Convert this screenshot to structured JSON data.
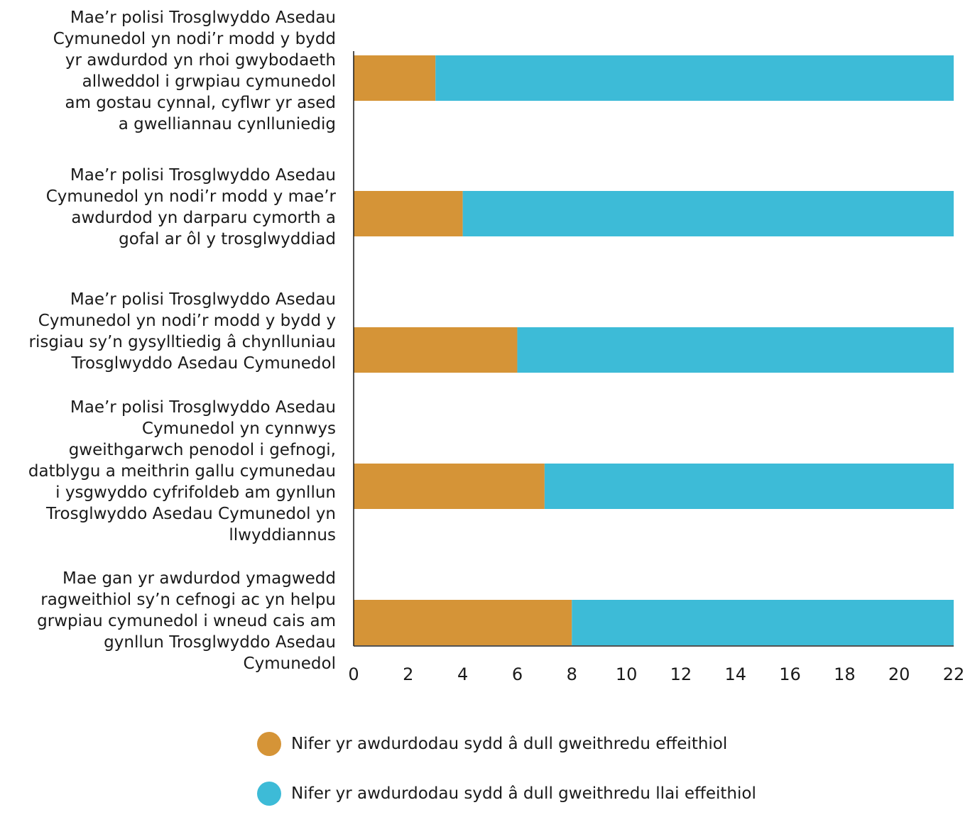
{
  "chart_data": {
    "type": "bar",
    "orientation": "horizontal",
    "stacked": true,
    "categories": [
      [
        "Mae’r polisi Trosglwyddo Asedau",
        "Cymunedol yn nodi’r modd y bydd",
        "yr awdurdod yn rhoi gwybodaeth",
        "allweddol i grwpiau cymunedol",
        "am gostau cynnal, cyflwr yr ased",
        "a gwelliannau cynlluniedig"
      ],
      [
        "Mae’r polisi Trosglwyddo Asedau",
        "Cymunedol yn nodi’r modd y mae’r",
        "awdurdod yn darparu cymorth a",
        "gofal ar ôl y trosglwyddiad"
      ],
      [
        "Mae’r polisi Trosglwyddo Asedau",
        "Cymunedol yn nodi’r modd y bydd y",
        "risgiau sy’n gysylltiedig â chynlluniau",
        "Trosglwyddo Asedau Cymunedol"
      ],
      [
        "Mae’r polisi Trosglwyddo Asedau",
        "Cymunedol yn cynnwys",
        "gweithgarwch penodol i gefnogi,",
        "datblygu a meithrin gallu cymunedau",
        "i ysgwyddo cyfrifoldeb am gynllun",
        "Trosglwyddo Asedau Cymunedol yn",
        "llwyddiannus"
      ],
      [
        "Mae gan yr awdurdod ymagwedd",
        "ragweithiol sy’n cefnogi ac yn helpu",
        "grwpiau cymunedol i wneud cais am",
        "gynllun Trosglwyddo Asedau",
        "Cymunedol"
      ]
    ],
    "series": [
      {
        "name": "Nifer yr awdurdodau sydd â dull gweithredu effeithiol",
        "color": "#d59437",
        "values": [
          3,
          4,
          6,
          7,
          8
        ]
      },
      {
        "name": "Nifer yr awdurdodau sydd â dull gweithredu llai effeithiol",
        "color": "#3dbbd7",
        "values": [
          19,
          18,
          16,
          15,
          14
        ]
      }
    ],
    "xlim": [
      0,
      22
    ],
    "xticks": [
      0,
      2,
      4,
      6,
      8,
      10,
      12,
      14,
      16,
      18,
      20,
      22
    ],
    "grid": false,
    "legend_position": "bottom"
  }
}
